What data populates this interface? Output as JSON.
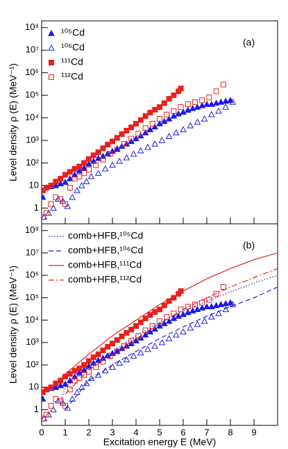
{
  "chart_data": [
    {
      "type": "scatter",
      "panel_label": "(a)",
      "ylabel": "Level density ρ (E) (MeV⁻¹)",
      "log_y": true,
      "xlim": [
        0,
        10
      ],
      "xticks": [
        0,
        1,
        2,
        3,
        4,
        5,
        6,
        7,
        8,
        9
      ],
      "xtick_labels": false,
      "ylim": [
        0.2,
        200000000
      ],
      "yticks": [
        {
          "value": 1,
          "label": "1"
        },
        {
          "value": 10,
          "label": "10"
        },
        {
          "value": 100,
          "label": "10²"
        },
        {
          "value": 1000,
          "label": "10³"
        },
        {
          "value": 10000,
          "label": "10⁴"
        },
        {
          "value": 100000,
          "label": "10⁵"
        },
        {
          "value": 1000000,
          "label": "10⁶"
        },
        {
          "value": 10000000,
          "label": "10⁷"
        },
        {
          "value": 100000000,
          "label": "10⁸"
        }
      ],
      "legend": "upper-left",
      "series": [
        {
          "name": "¹⁰⁵Cd",
          "color": "#1a1ae6",
          "marker": "triangle-filled",
          "x": [
            0.05,
            0.2,
            0.4,
            0.6,
            0.8,
            1.0,
            1.2,
            1.4,
            1.6,
            1.8,
            2.0,
            2.2,
            2.4,
            2.6,
            2.8,
            3.0,
            3.2,
            3.4,
            3.6,
            3.8,
            4.0,
            4.2,
            4.4,
            4.6,
            4.8,
            5.0,
            5.2,
            5.4,
            5.6,
            5.8,
            6.0,
            6.2,
            6.4,
            6.6,
            6.8,
            7.0,
            7.2,
            7.4,
            7.6,
            7.8,
            8.0
          ],
          "values": [
            3,
            8,
            9,
            10,
            12,
            14,
            20,
            30,
            45,
            60,
            90,
            120,
            160,
            200,
            260,
            330,
            420,
            550,
            700,
            900,
            1200,
            1600,
            2200,
            3000,
            4000,
            5500,
            7000,
            9000,
            12000,
            15000,
            18000,
            22000,
            26000,
            30000,
            35000,
            40000,
            40000,
            45000,
            50000,
            55000,
            60000
          ]
        },
        {
          "name": "¹⁰⁶Cd",
          "color": "#1a1ae6",
          "marker": "triangle-open",
          "x": [
            0.1,
            0.3,
            0.5,
            0.7,
            0.9,
            1.1,
            1.3,
            1.5,
            1.7,
            1.9,
            2.1,
            2.4,
            2.7,
            3.0,
            3.3,
            3.6,
            3.9,
            4.2,
            4.5,
            4.8,
            5.1,
            5.4,
            5.7,
            6.0,
            6.3,
            6.6,
            6.9,
            7.2,
            7.5,
            7.8,
            8.1
          ],
          "values": [
            0.4,
            0.6,
            1,
            2.5,
            2,
            1.2,
            3,
            6,
            10,
            15,
            25,
            35,
            55,
            80,
            120,
            170,
            250,
            350,
            500,
            700,
            1000,
            1500,
            2200,
            3000,
            4500,
            6500,
            9000,
            14000,
            20000,
            30000,
            50000
          ]
        },
        {
          "name": "¹¹¹Cd",
          "color": "#e8201e",
          "marker": "square-filled",
          "x": [
            0.05,
            0.2,
            0.4,
            0.6,
            0.8,
            1.0,
            1.2,
            1.4,
            1.6,
            1.8,
            2.0,
            2.2,
            2.4,
            2.6,
            2.8,
            3.0,
            3.2,
            3.4,
            3.6,
            3.8,
            4.0,
            4.2,
            4.4,
            4.6,
            4.8,
            5.0,
            5.2,
            5.4,
            5.6,
            5.8,
            5.9
          ],
          "values": [
            6,
            8,
            10,
            15,
            20,
            30,
            40,
            55,
            70,
            100,
            150,
            220,
            300,
            450,
            650,
            900,
            1300,
            1900,
            2700,
            3800,
            5500,
            8000,
            12000,
            17000,
            23000,
            30000,
            45000,
            70000,
            100000,
            150000,
            200000
          ]
        },
        {
          "name": "¹¹²Cd",
          "color": "#e8201e",
          "marker": "square-open",
          "x": [
            0.05,
            0.2,
            0.4,
            0.6,
            0.8,
            1.0,
            1.2,
            1.4,
            1.6,
            1.8,
            2.0,
            2.3,
            2.6,
            2.9,
            3.2,
            3.5,
            3.8,
            4.1,
            4.4,
            4.7,
            5.0,
            5.3,
            5.6,
            5.9,
            6.2,
            6.5,
            6.8,
            7.1,
            7.4,
            7.7
          ],
          "values": [
            0.4,
            0.6,
            1.5,
            3,
            2.5,
            1.5,
            8,
            20,
            25,
            35,
            50,
            80,
            140,
            250,
            400,
            700,
            1200,
            2000,
            3500,
            5500,
            9000,
            14000,
            20000,
            30000,
            40000,
            50000,
            60000,
            80000,
            150000,
            300000
          ]
        }
      ]
    },
    {
      "type": "scatter",
      "panel_label": "(b)",
      "ylabel": "Level density ρ (E) (MeV⁻¹)",
      "xlabel": "Excitation energy E (MeV)",
      "log_y": true,
      "xlim": [
        0,
        10
      ],
      "xticks": [
        0,
        1,
        2,
        3,
        4,
        5,
        6,
        7,
        8,
        9
      ],
      "xtick_labels": true,
      "ylim": [
        0.2,
        200000000
      ],
      "yticks": [
        {
          "value": 1,
          "label": "1"
        },
        {
          "value": 10,
          "label": "10"
        },
        {
          "value": 100,
          "label": "10²"
        },
        {
          "value": 1000,
          "label": "10³"
        },
        {
          "value": 10000,
          "label": "10⁴"
        },
        {
          "value": 100000,
          "label": "10⁵"
        },
        {
          "value": 1000000,
          "label": "10⁶"
        },
        {
          "value": 10000000,
          "label": "10⁷"
        },
        {
          "value": 100000000,
          "label": "10⁸"
        }
      ],
      "legend": "upper-left",
      "series": [
        {
          "name": "comb+HFB,¹⁰⁵Cd",
          "color": "#1a1ae6",
          "line": "dotted",
          "x": [
            0.8,
            1,
            2,
            3,
            4,
            5,
            6,
            7,
            8,
            9,
            10
          ],
          "values": [
            2,
            10,
            80,
            400,
            2000,
            8000,
            25000,
            70000,
            180000,
            450000,
            1000000
          ]
        },
        {
          "name": "comb+HFB,¹⁰⁶Cd",
          "color": "#1a1ae6",
          "line": "dashed",
          "x": [
            1,
            2,
            3,
            4,
            5,
            6,
            7,
            8,
            9,
            10
          ],
          "values": [
            1,
            20,
            100,
            400,
            1500,
            5000,
            15000,
            40000,
            100000,
            300000
          ]
        },
        {
          "name": "comb+HFB,¹¹¹Cd",
          "color": "#e8201e",
          "line": "solid",
          "x": [
            0.5,
            1,
            2,
            3,
            4,
            5,
            6,
            7,
            8,
            9,
            10
          ],
          "values": [
            10,
            40,
            300,
            2000,
            10000,
            50000,
            200000,
            700000,
            2000000,
            5000000,
            10000000
          ]
        },
        {
          "name": "comb+HFB,¹¹²Cd",
          "color": "#e8201e",
          "line": "dashdot",
          "x": [
            1,
            2,
            3,
            4,
            5,
            6,
            7,
            8,
            9,
            10
          ],
          "values": [
            5,
            60,
            300,
            1500,
            7000,
            30000,
            100000,
            300000,
            800000,
            2000000
          ]
        },
        {
          "color": "#1a1ae6",
          "marker": "triangle-filled",
          "x": [
            0.05,
            0.2,
            0.4,
            0.6,
            0.8,
            1.0,
            1.2,
            1.4,
            1.6,
            1.8,
            2.0,
            2.2,
            2.4,
            2.6,
            2.8,
            3.0,
            3.2,
            3.4,
            3.6,
            3.8,
            4.0,
            4.2,
            4.4,
            4.6,
            4.8,
            5.0,
            5.2,
            5.4,
            5.6,
            5.8,
            6.0,
            6.2,
            6.4,
            6.6,
            6.8,
            7.0,
            7.2,
            7.4,
            7.6,
            7.8,
            8.0
          ],
          "values": [
            3,
            8,
            9,
            10,
            12,
            14,
            20,
            30,
            45,
            60,
            90,
            120,
            160,
            200,
            260,
            330,
            420,
            550,
            700,
            900,
            1200,
            1600,
            2200,
            3000,
            4000,
            5500,
            7000,
            9000,
            12000,
            15000,
            18000,
            22000,
            26000,
            30000,
            35000,
            40000,
            40000,
            45000,
            50000,
            55000,
            60000
          ]
        },
        {
          "color": "#1a1ae6",
          "marker": "triangle-open",
          "x": [
            0.1,
            0.3,
            0.5,
            0.7,
            0.9,
            1.1,
            1.3,
            1.5,
            1.7,
            1.9,
            2.1,
            2.4,
            2.7,
            3.0,
            3.3,
            3.6,
            3.9,
            4.2,
            4.5,
            4.8,
            5.1,
            5.4,
            5.7,
            6.0,
            6.3,
            6.6,
            6.9,
            7.2,
            7.5,
            7.8,
            8.1
          ],
          "values": [
            0.4,
            0.6,
            1,
            2.5,
            2,
            1.2,
            3,
            6,
            10,
            15,
            25,
            35,
            55,
            80,
            120,
            170,
            250,
            350,
            500,
            700,
            1000,
            1500,
            2200,
            3000,
            4500,
            6500,
            9000,
            14000,
            20000,
            30000,
            50000
          ]
        },
        {
          "color": "#e8201e",
          "marker": "square-filled",
          "x": [
            0.05,
            0.2,
            0.4,
            0.6,
            0.8,
            1.0,
            1.2,
            1.4,
            1.6,
            1.8,
            2.0,
            2.2,
            2.4,
            2.6,
            2.8,
            3.0,
            3.2,
            3.4,
            3.6,
            3.8,
            4.0,
            4.2,
            4.4,
            4.6,
            4.8,
            5.0,
            5.2,
            5.4,
            5.6,
            5.8,
            5.9
          ],
          "values": [
            6,
            8,
            10,
            15,
            20,
            30,
            40,
            55,
            70,
            100,
            150,
            220,
            300,
            450,
            650,
            900,
            1300,
            1900,
            2700,
            3800,
            5500,
            8000,
            12000,
            17000,
            23000,
            30000,
            45000,
            70000,
            100000,
            150000,
            200000
          ]
        },
        {
          "color": "#e8201e",
          "marker": "square-open",
          "x": [
            0.05,
            0.2,
            0.4,
            0.6,
            0.8,
            1.0,
            1.2,
            1.4,
            1.6,
            1.8,
            2.0,
            2.3,
            2.6,
            2.9,
            3.2,
            3.5,
            3.8,
            4.1,
            4.4,
            4.7,
            5.0,
            5.3,
            5.6,
            5.9,
            6.2,
            6.5,
            6.8,
            7.1,
            7.4,
            7.7
          ],
          "values": [
            0.4,
            0.6,
            1.5,
            3,
            2.5,
            1.5,
            8,
            20,
            25,
            35,
            50,
            80,
            140,
            250,
            400,
            700,
            1200,
            2000,
            3500,
            5500,
            9000,
            14000,
            20000,
            30000,
            40000,
            50000,
            60000,
            80000,
            150000,
            300000
          ]
        }
      ]
    }
  ]
}
